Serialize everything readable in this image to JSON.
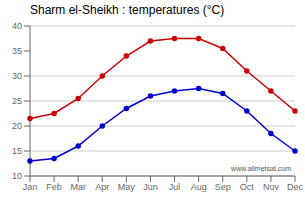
{
  "chart_data": {
    "type": "line",
    "title": "Sharm el-Sheikh : temperatures (°C)",
    "categories": [
      "Jan",
      "Feb",
      "Mar",
      "Apr",
      "May",
      "Jun",
      "Jul",
      "Aug",
      "Sep",
      "Oct",
      "Nov",
      "Dec"
    ],
    "series": [
      {
        "color": "#cc0000",
        "values": [
          21.5,
          22.5,
          25.5,
          30.0,
          34.0,
          37.0,
          37.5,
          37.5,
          35.5,
          31.0,
          27.0,
          23.0
        ]
      },
      {
        "color": "#0000cc",
        "values": [
          13.0,
          13.5,
          16.0,
          20.0,
          23.5,
          26.0,
          27.0,
          27.5,
          26.5,
          23.0,
          18.5,
          15.0
        ]
      }
    ],
    "ylim": [
      10,
      40
    ],
    "yticks": [
      10,
      15,
      20,
      25,
      30,
      35,
      40
    ],
    "grid": true,
    "marker": "circle",
    "annotations": [
      "www.allmetsat.com"
    ]
  }
}
